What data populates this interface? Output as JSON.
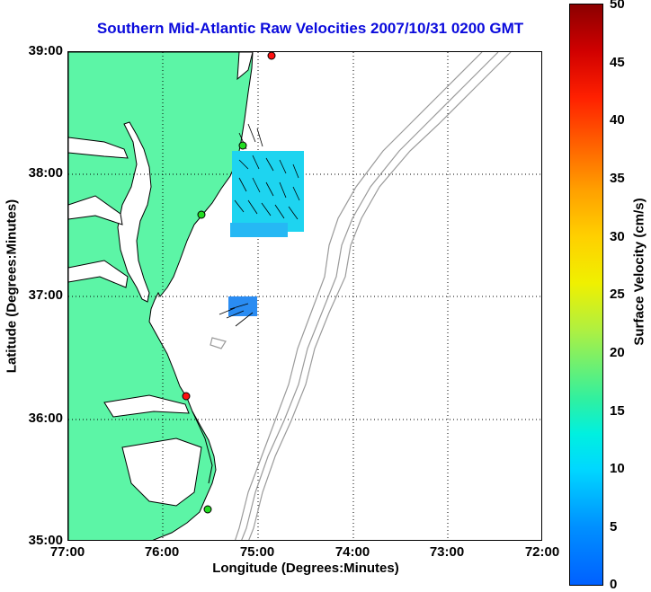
{
  "title": "Southern Mid-Atlantic Raw Velocities 2007/10/31 0200 GMT",
  "axes": {
    "xlabel": "Longitude (Degrees:Minutes)",
    "ylabel": "Latitude (Degrees:Minutes)",
    "xticks": [
      "77:00",
      "76:00",
      "75:00",
      "74:00",
      "73:00",
      "72:00"
    ],
    "yticks": [
      "39:00",
      "38:00",
      "37:00",
      "36:00",
      "35:00"
    ]
  },
  "colorbar": {
    "label": "Surface Velocity (cm/s)",
    "ticks": [
      "50",
      "45",
      "40",
      "35",
      "30",
      "25",
      "20",
      "15",
      "10",
      "5",
      "0"
    ]
  },
  "colors": {
    "land": "#5cf5a6",
    "land_outline": "#000000",
    "bathymetry": "#9a9a9a",
    "title": "#0a0adc",
    "station_active": "#22dd22",
    "station_inactive": "#ff1111"
  },
  "stations": [
    {
      "status": "inactive",
      "lon": -74.85,
      "lat": 38.95
    },
    {
      "status": "active",
      "lon": -75.09,
      "lat": 38.19
    },
    {
      "status": "active",
      "lon": -75.52,
      "lat": 37.68
    },
    {
      "status": "inactive",
      "lon": -75.75,
      "lat": 36.18
    },
    {
      "status": "active",
      "lon": -75.47,
      "lat": 35.25
    }
  ]
}
